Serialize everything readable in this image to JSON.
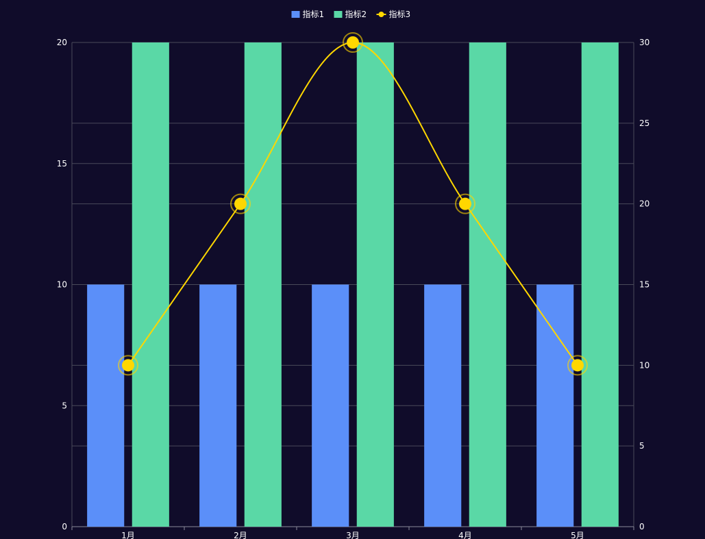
{
  "chart_data": {
    "type": "bar",
    "categories": [
      "1月",
      "2月",
      "3月",
      "4月",
      "5月"
    ],
    "series": [
      {
        "name": "指标1",
        "type": "bar",
        "axis": "left",
        "values": [
          10,
          10,
          10,
          10,
          10
        ],
        "color": "#5b8ff9"
      },
      {
        "name": "指标2",
        "type": "bar",
        "axis": "left",
        "values": [
          20,
          20,
          20,
          20,
          20
        ],
        "color": "#5ad8a6"
      },
      {
        "name": "指标3",
        "type": "line",
        "axis": "right",
        "smooth": true,
        "values": [
          10,
          20,
          30,
          20,
          10
        ],
        "color": "#ffd700"
      }
    ],
    "y_left": {
      "range": [
        0,
        20
      ],
      "ticks": [
        0,
        5,
        10,
        15,
        20
      ]
    },
    "y_right": {
      "range": [
        0,
        30
      ],
      "ticks": [
        0,
        5,
        10,
        15,
        20,
        25,
        30
      ]
    },
    "grid": true,
    "legend_position": "top-center",
    "colors": {
      "background": "#100c2a",
      "grid": "#4a4a5a",
      "text": "#ffffff"
    }
  }
}
